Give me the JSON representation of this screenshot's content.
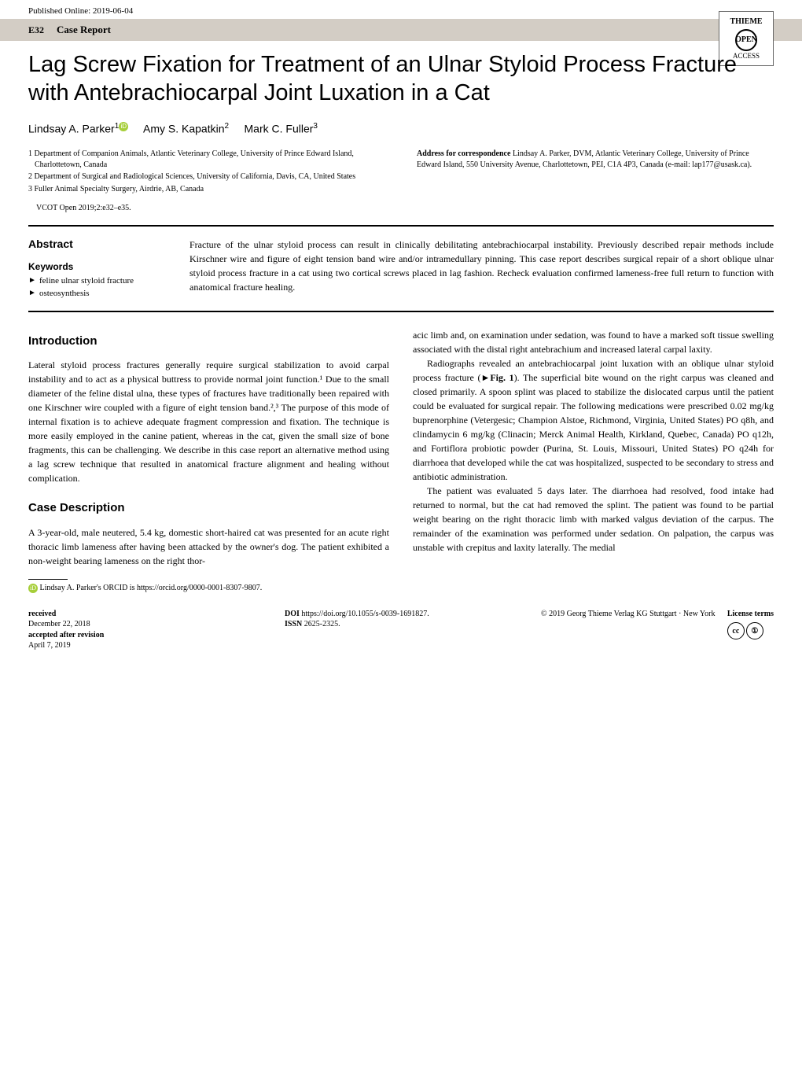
{
  "published_online": "Published Online: 2019-06-04",
  "page_number": "E32",
  "section_type": "Case Report",
  "logo": {
    "brand": "THIEME",
    "line1": "OPEN",
    "line2": "ACCESS"
  },
  "title": "Lag Screw Fixation for Treatment of an Ulnar Styloid Process Fracture with Antebrachiocarpal Joint Luxation in a Cat",
  "authors": [
    {
      "name": "Lindsay A. Parker",
      "sup": "1",
      "orcid": true
    },
    {
      "name": "Amy S. Kapatkin",
      "sup": "2",
      "orcid": false
    },
    {
      "name": "Mark C. Fuller",
      "sup": "3",
      "orcid": false
    }
  ],
  "affiliations": [
    "1 Department of Companion Animals, Atlantic Veterinary College, University of Prince Edward Island, Charlottetown, Canada",
    "2 Department of Surgical and Radiological Sciences, University of California, Davis, CA, United States",
    "3 Fuller Animal Specialty Surgery, Airdrie, AB, Canada"
  ],
  "correspondence": {
    "label": "Address for correspondence",
    "text": "Lindsay A. Parker, DVM, Atlantic Veterinary College, University of Prince Edward Island, 550 University Avenue, Charlottetown, PEI, C1A 4P3, Canada (e-mail: lap177@usask.ca)."
  },
  "citation": "VCOT Open 2019;2:e32–e35.",
  "abstract": {
    "heading": "Abstract",
    "keywords_heading": "Keywords",
    "keywords": [
      "feline ulnar styloid fracture",
      "osteosynthesis"
    ],
    "text": "Fracture of the ulnar styloid process can result in clinically debilitating antebrachiocarpal instability. Previously described repair methods include Kirschner wire and figure of eight tension band wire and/or intramedullary pinning. This case report describes surgical repair of a short oblique ulnar styloid process fracture in a cat using two cortical screws placed in lag fashion. Recheck evaluation confirmed lameness-free full return to function with anatomical fracture healing."
  },
  "sections": {
    "intro_heading": "Introduction",
    "intro_text": "Lateral styloid process fractures generally require surgical stabilization to avoid carpal instability and to act as a physical buttress to provide normal joint function.¹ Due to the small diameter of the feline distal ulna, these types of fractures have traditionally been repaired with one Kirschner wire coupled with a figure of eight tension band.²,³ The purpose of this mode of internal fixation is to achieve adequate fragment compression and fixation. The technique is more easily employed in the canine patient, whereas in the cat, given the small size of bone fragments, this can be challenging. We describe in this case report an alternative method using a lag screw technique that resulted in anatomical fracture alignment and healing without complication.",
    "case_heading": "Case Description",
    "case_p1": "A 3-year-old, male neutered, 5.4 kg, domestic short-haired cat was presented for an acute right thoracic limb lameness after having been attacked by the owner's dog. The patient exhibited a non-weight bearing lameness on the right thor-",
    "col2_p1": "acic limb and, on examination under sedation, was found to have a marked soft tissue swelling associated with the distal right antebrachium and increased lateral carpal laxity.",
    "col2_p2_a": "Radiographs revealed an antebrachiocarpal joint luxation with an oblique ulnar styloid process fracture (",
    "col2_p2_fig": "►Fig. 1",
    "col2_p2_b": "). The superficial bite wound on the right carpus was cleaned and closed primarily. A spoon splint was placed to stabilize the dislocated carpus until the patient could be evaluated for surgical repair. The following medications were prescribed 0.02 mg/kg buprenorphine (Vetergesic; Champion Alstoe, Richmond, Virginia, United States) PO q8h, and clindamycin 6 mg/kg (Clinacin; Merck Animal Health, Kirkland, Quebec, Canada) PO q12h, and Fortiflora probiotic powder (Purina, St. Louis, Missouri, United States) PO q24h for diarrhoea that developed while the cat was hospitalized, suspected to be secondary to stress and antibiotic administration.",
    "col2_p3": "The patient was evaluated 5 days later. The diarrhoea had resolved, food intake had returned to normal, but the cat had removed the splint. The patient was found to be partial weight bearing on the right thoracic limb with marked valgus deviation of the carpus. The remainder of the examination was performed under sedation. On palpation, the carpus was unstable with crepitus and laxity laterally. The medial"
  },
  "footnote": "Lindsay A. Parker's ORCID is https://orcid.org/0000-0001-8307-9807.",
  "footer": {
    "received_label": "received",
    "received_date": "December 22, 2018",
    "accepted_label": "accepted after revision",
    "accepted_date": "April 7, 2019",
    "doi_label": "DOI",
    "doi": "https://doi.org/10.1055/s-0039-1691827.",
    "issn_label": "ISSN",
    "issn": "2625-2325.",
    "copyright": "© 2019 Georg Thieme Verlag KG Stuttgart · New York",
    "license_label": "License terms",
    "cc1": "cc",
    "cc2": "①"
  }
}
